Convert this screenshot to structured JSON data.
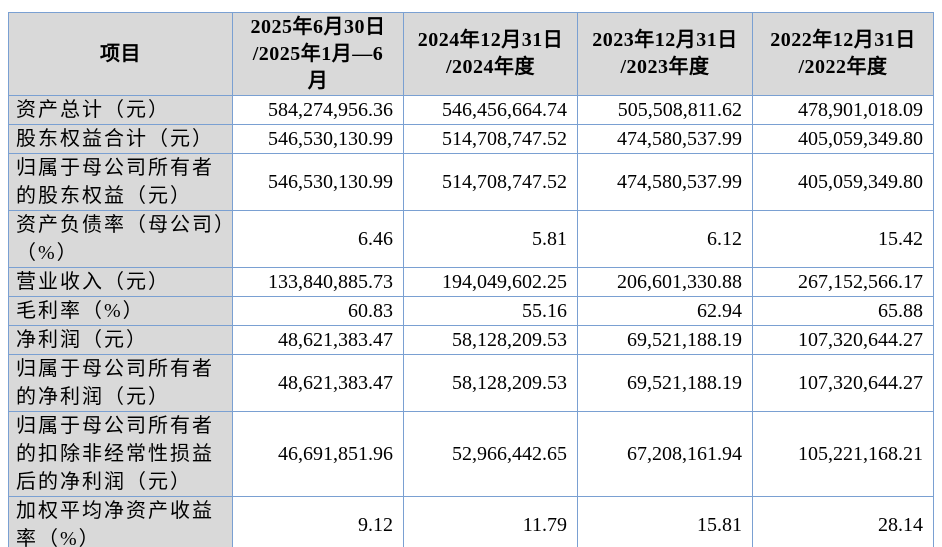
{
  "colors": {
    "border_blue": "#7aa0d2",
    "outer_border_blue": "#6f94c6",
    "header_fill_gray": "#d9d9d9",
    "cell_fill_white": "#ffffff",
    "text_black": "#000000"
  },
  "table": {
    "columns": [
      "项目",
      "2025年6月30日\n/2025年1月—6\n月",
      "2024年12月31日\n/2024年度",
      "2023年12月31日\n/2023年度",
      "2022年12月31日\n/2022年度"
    ],
    "rows": [
      {
        "label": "资产总计（元）",
        "values": [
          "584,274,956.36",
          "546,456,664.74",
          "505,508,811.62",
          "478,901,018.09"
        ]
      },
      {
        "label": "股东权益合计（元）",
        "values": [
          "546,530,130.99",
          "514,708,747.52",
          "474,580,537.99",
          "405,059,349.80"
        ]
      },
      {
        "label": "归属于母公司所有者的股东权益（元）",
        "values": [
          "546,530,130.99",
          "514,708,747.52",
          "474,580,537.99",
          "405,059,349.80"
        ]
      },
      {
        "label": "资产负债率（母公司）（%）",
        "values": [
          "6.46",
          "5.81",
          "6.12",
          "15.42"
        ]
      },
      {
        "label": "营业收入（元）",
        "values": [
          "133,840,885.73",
          "194,049,602.25",
          "206,601,330.88",
          "267,152,566.17"
        ]
      },
      {
        "label": "毛利率（%）",
        "values": [
          "60.83",
          "55.16",
          "62.94",
          "65.88"
        ]
      },
      {
        "label": "净利润（元）",
        "values": [
          "48,621,383.47",
          "58,128,209.53",
          "69,521,188.19",
          "107,320,644.27"
        ]
      },
      {
        "label": "归属于母公司所有者的净利润（元）",
        "values": [
          "48,621,383.47",
          "58,128,209.53",
          "69,521,188.19",
          "107,320,644.27"
        ]
      },
      {
        "label": "归属于母公司所有者的扣除非经常性损益后的净利润（元）",
        "values": [
          "46,691,851.96",
          "52,966,442.65",
          "67,208,161.94",
          "105,221,168.21"
        ]
      },
      {
        "label": "加权平均净资产收益率（%）",
        "values": [
          "9.12",
          "11.79",
          "15.81",
          "28.14"
        ]
      }
    ]
  }
}
